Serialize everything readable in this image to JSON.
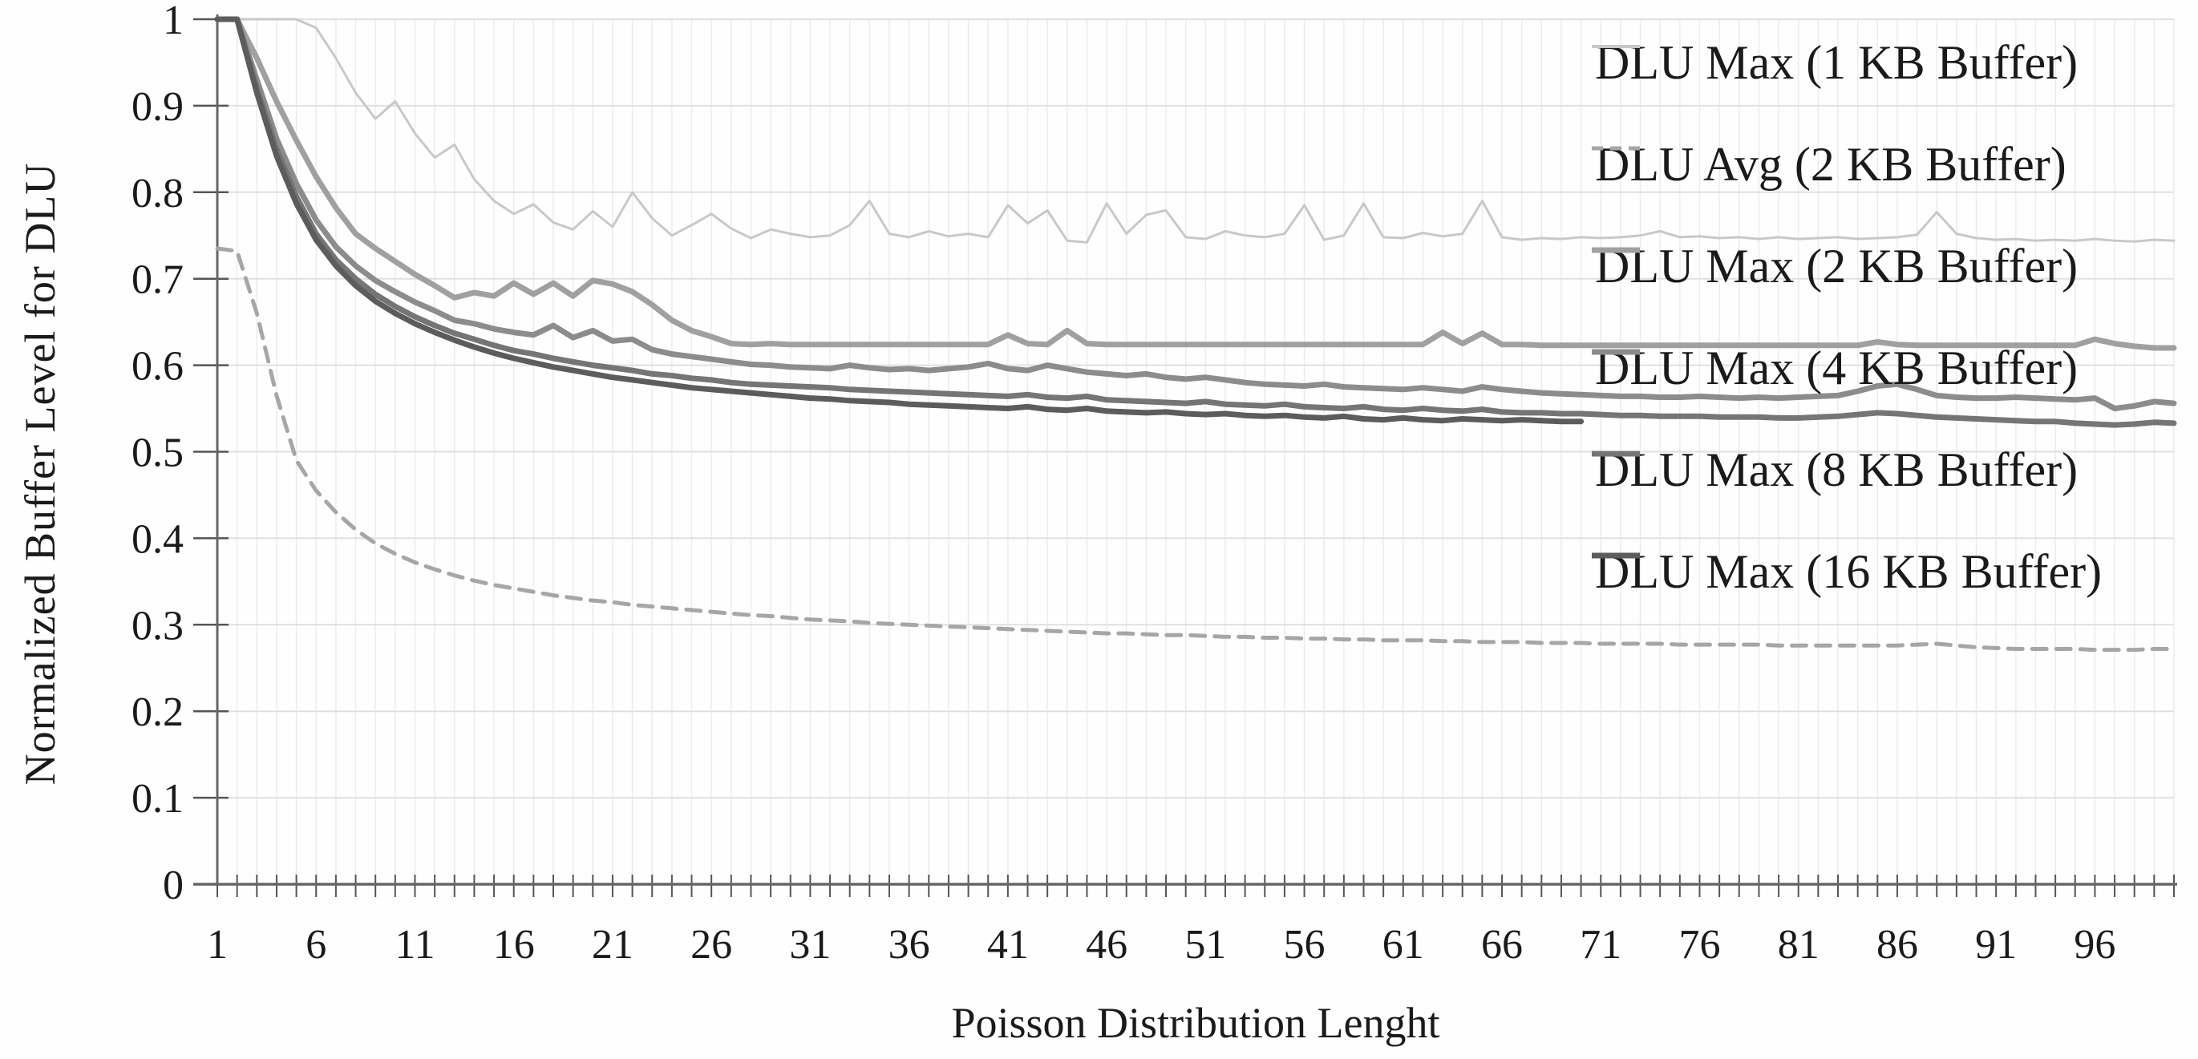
{
  "chart_data": {
    "type": "line",
    "title": "",
    "xlabel": "Poisson Distribution Lenght",
    "ylabel": "Normalized Buffer Level for DLU",
    "x_range": [
      1,
      100
    ],
    "ylim": [
      0,
      1
    ],
    "grid": true,
    "legend_position": "inside-top-right",
    "x_tick_labels": [
      "1",
      "6",
      "11",
      "16",
      "21",
      "26",
      "31",
      "36",
      "41",
      "46",
      "51",
      "56",
      "61",
      "66",
      "71",
      "76",
      "81",
      "86",
      "91",
      "96"
    ],
    "x_tick_values": [
      1,
      6,
      11,
      16,
      21,
      26,
      31,
      36,
      41,
      46,
      51,
      56,
      61,
      66,
      71,
      76,
      81,
      86,
      91,
      96
    ],
    "y_tick_labels": [
      "1",
      "0.9",
      "0.8",
      "0.7",
      "0.6",
      "0.5",
      "0.4",
      "0.3",
      "0.2",
      "0.1",
      "0"
    ],
    "y_tick_values": [
      1,
      0.9,
      0.8,
      0.7,
      0.6,
      0.5,
      0.4,
      0.3,
      0.2,
      0.1,
      0
    ],
    "colors": {
      "axis": "#666666",
      "grid_vertical": "#ececec",
      "grid_horizontal": "#e0e0e0",
      "tick": "#555555",
      "text": "#1a1a1a"
    },
    "series": [
      {
        "name": "DLU Max (1 KB Buffer)",
        "color": "#c8c8c8",
        "width": 3,
        "dash": "",
        "x_start": 1,
        "values": [
          1.0,
          1.0,
          1.0,
          1.0,
          1.0,
          0.99,
          0.955,
          0.915,
          0.885,
          0.905,
          0.868,
          0.84,
          0.855,
          0.815,
          0.79,
          0.775,
          0.786,
          0.765,
          0.757,
          0.778,
          0.76,
          0.8,
          0.77,
          0.75,
          0.762,
          0.775,
          0.758,
          0.747,
          0.757,
          0.752,
          0.748,
          0.75,
          0.762,
          0.79,
          0.752,
          0.748,
          0.755,
          0.749,
          0.752,
          0.748,
          0.785,
          0.764,
          0.779,
          0.744,
          0.742,
          0.787,
          0.752,
          0.774,
          0.779,
          0.748,
          0.746,
          0.755,
          0.75,
          0.748,
          0.752,
          0.785,
          0.745,
          0.75,
          0.787,
          0.748,
          0.747,
          0.753,
          0.749,
          0.752,
          0.79,
          0.748,
          0.745,
          0.747,
          0.746,
          0.748,
          0.747,
          0.748,
          0.75,
          0.755,
          0.748,
          0.749,
          0.747,
          0.748,
          0.746,
          0.748,
          0.746,
          0.747,
          0.748,
          0.746,
          0.747,
          0.748,
          0.751,
          0.777,
          0.752,
          0.747,
          0.745,
          0.746,
          0.744,
          0.745,
          0.744,
          0.746,
          0.744,
          0.743,
          0.745,
          0.744
        ]
      },
      {
        "name": "DLU Avg (2 KB Buffer)",
        "color": "#a6a6a6",
        "width": 5,
        "dash": "18 12",
        "x_start": 1,
        "values": [
          0.735,
          0.732,
          0.66,
          0.565,
          0.49,
          0.455,
          0.43,
          0.41,
          0.394,
          0.382,
          0.372,
          0.364,
          0.357,
          0.351,
          0.346,
          0.342,
          0.338,
          0.334,
          0.331,
          0.328,
          0.326,
          0.323,
          0.321,
          0.319,
          0.317,
          0.315,
          0.313,
          0.311,
          0.31,
          0.308,
          0.306,
          0.305,
          0.304,
          0.302,
          0.301,
          0.3,
          0.299,
          0.298,
          0.297,
          0.296,
          0.295,
          0.294,
          0.293,
          0.292,
          0.291,
          0.29,
          0.29,
          0.289,
          0.288,
          0.288,
          0.287,
          0.286,
          0.286,
          0.285,
          0.285,
          0.284,
          0.284,
          0.283,
          0.283,
          0.282,
          0.282,
          0.282,
          0.281,
          0.281,
          0.28,
          0.28,
          0.28,
          0.279,
          0.279,
          0.279,
          0.278,
          0.278,
          0.278,
          0.278,
          0.277,
          0.277,
          0.277,
          0.277,
          0.277,
          0.276,
          0.276,
          0.276,
          0.276,
          0.276,
          0.276,
          0.276,
          0.277,
          0.278,
          0.276,
          0.274,
          0.273,
          0.272,
          0.272,
          0.272,
          0.272,
          0.271,
          0.271,
          0.271,
          0.272,
          0.272
        ]
      },
      {
        "name": "DLU Max (2 KB Buffer)",
        "color": "#a0a0a0",
        "width": 7,
        "dash": "",
        "x_start": 1,
        "values": [
          1.0,
          1.0,
          0.955,
          0.905,
          0.86,
          0.818,
          0.782,
          0.752,
          0.735,
          0.72,
          0.705,
          0.692,
          0.678,
          0.684,
          0.68,
          0.695,
          0.682,
          0.695,
          0.68,
          0.698,
          0.694,
          0.685,
          0.67,
          0.652,
          0.64,
          0.633,
          0.625,
          0.624,
          0.625,
          0.624,
          0.624,
          0.624,
          0.624,
          0.624,
          0.624,
          0.624,
          0.624,
          0.624,
          0.624,
          0.624,
          0.635,
          0.625,
          0.624,
          0.64,
          0.625,
          0.624,
          0.624,
          0.624,
          0.624,
          0.624,
          0.624,
          0.624,
          0.624,
          0.624,
          0.624,
          0.624,
          0.624,
          0.624,
          0.624,
          0.624,
          0.624,
          0.624,
          0.638,
          0.625,
          0.637,
          0.624,
          0.624,
          0.623,
          0.623,
          0.623,
          0.623,
          0.623,
          0.623,
          0.623,
          0.623,
          0.623,
          0.623,
          0.623,
          0.623,
          0.623,
          0.623,
          0.623,
          0.623,
          0.623,
          0.627,
          0.624,
          0.623,
          0.623,
          0.623,
          0.623,
          0.623,
          0.623,
          0.623,
          0.623,
          0.623,
          0.63,
          0.625,
          0.622,
          0.62,
          0.62
        ]
      },
      {
        "name": "DLU Max (4 KB Buffer)",
        "color": "#8c8c8c",
        "width": 7,
        "dash": "",
        "x_start": 1,
        "values": [
          1.0,
          1.0,
          0.93,
          0.862,
          0.81,
          0.768,
          0.737,
          0.715,
          0.698,
          0.685,
          0.673,
          0.663,
          0.652,
          0.648,
          0.642,
          0.638,
          0.635,
          0.646,
          0.632,
          0.64,
          0.628,
          0.63,
          0.618,
          0.613,
          0.61,
          0.607,
          0.604,
          0.601,
          0.6,
          0.598,
          0.597,
          0.596,
          0.6,
          0.597,
          0.595,
          0.596,
          0.594,
          0.596,
          0.598,
          0.602,
          0.596,
          0.594,
          0.6,
          0.596,
          0.592,
          0.59,
          0.588,
          0.59,
          0.586,
          0.584,
          0.586,
          0.583,
          0.58,
          0.578,
          0.577,
          0.576,
          0.578,
          0.575,
          0.574,
          0.573,
          0.572,
          0.574,
          0.572,
          0.57,
          0.575,
          0.572,
          0.57,
          0.568,
          0.567,
          0.566,
          0.565,
          0.564,
          0.564,
          0.563,
          0.563,
          0.564,
          0.563,
          0.562,
          0.563,
          0.562,
          0.563,
          0.564,
          0.565,
          0.57,
          0.576,
          0.578,
          0.572,
          0.565,
          0.563,
          0.562,
          0.562,
          0.563,
          0.562,
          0.561,
          0.56,
          0.562,
          0.55,
          0.553,
          0.558,
          0.556
        ]
      },
      {
        "name": "DLU Max (8 KB Buffer)",
        "color": "#757575",
        "width": 7,
        "dash": "",
        "x_start": 1,
        "values": [
          1.0,
          1.0,
          0.92,
          0.85,
          0.795,
          0.752,
          0.722,
          0.7,
          0.682,
          0.668,
          0.656,
          0.646,
          0.637,
          0.63,
          0.623,
          0.617,
          0.613,
          0.608,
          0.604,
          0.6,
          0.597,
          0.594,
          0.59,
          0.588,
          0.585,
          0.583,
          0.58,
          0.578,
          0.577,
          0.576,
          0.575,
          0.574,
          0.572,
          0.571,
          0.57,
          0.569,
          0.568,
          0.567,
          0.566,
          0.565,
          0.564,
          0.566,
          0.563,
          0.562,
          0.564,
          0.56,
          0.559,
          0.558,
          0.557,
          0.556,
          0.558,
          0.555,
          0.554,
          0.553,
          0.555,
          0.552,
          0.551,
          0.55,
          0.552,
          0.549,
          0.548,
          0.55,
          0.548,
          0.547,
          0.549,
          0.546,
          0.545,
          0.545,
          0.544,
          0.544,
          0.543,
          0.542,
          0.542,
          0.541,
          0.541,
          0.541,
          0.54,
          0.54,
          0.54,
          0.539,
          0.539,
          0.54,
          0.541,
          0.543,
          0.545,
          0.544,
          0.542,
          0.54,
          0.539,
          0.538,
          0.537,
          0.536,
          0.535,
          0.535,
          0.533,
          0.532,
          0.531,
          0.532,
          0.534,
          0.533
        ]
      },
      {
        "name": "DLU Max (16 KB Buffer)",
        "color": "#5c5c5c",
        "width": 7,
        "dash": "",
        "x_start": 1,
        "values": [
          1.0,
          1.0,
          0.915,
          0.842,
          0.787,
          0.745,
          0.715,
          0.692,
          0.674,
          0.66,
          0.648,
          0.638,
          0.629,
          0.621,
          0.614,
          0.608,
          0.603,
          0.598,
          0.594,
          0.59,
          0.586,
          0.583,
          0.58,
          0.577,
          0.574,
          0.572,
          0.57,
          0.568,
          0.566,
          0.564,
          0.562,
          0.561,
          0.559,
          0.558,
          0.557,
          0.555,
          0.554,
          0.553,
          0.552,
          0.551,
          0.55,
          0.552,
          0.549,
          0.548,
          0.55,
          0.547,
          0.546,
          0.545,
          0.546,
          0.544,
          0.543,
          0.544,
          0.542,
          0.541,
          0.542,
          0.54,
          0.539,
          0.541,
          0.538,
          0.537,
          0.539,
          0.537,
          0.536,
          0.538,
          0.537,
          0.536,
          0.537,
          0.536,
          0.535,
          0.535
        ]
      }
    ]
  }
}
